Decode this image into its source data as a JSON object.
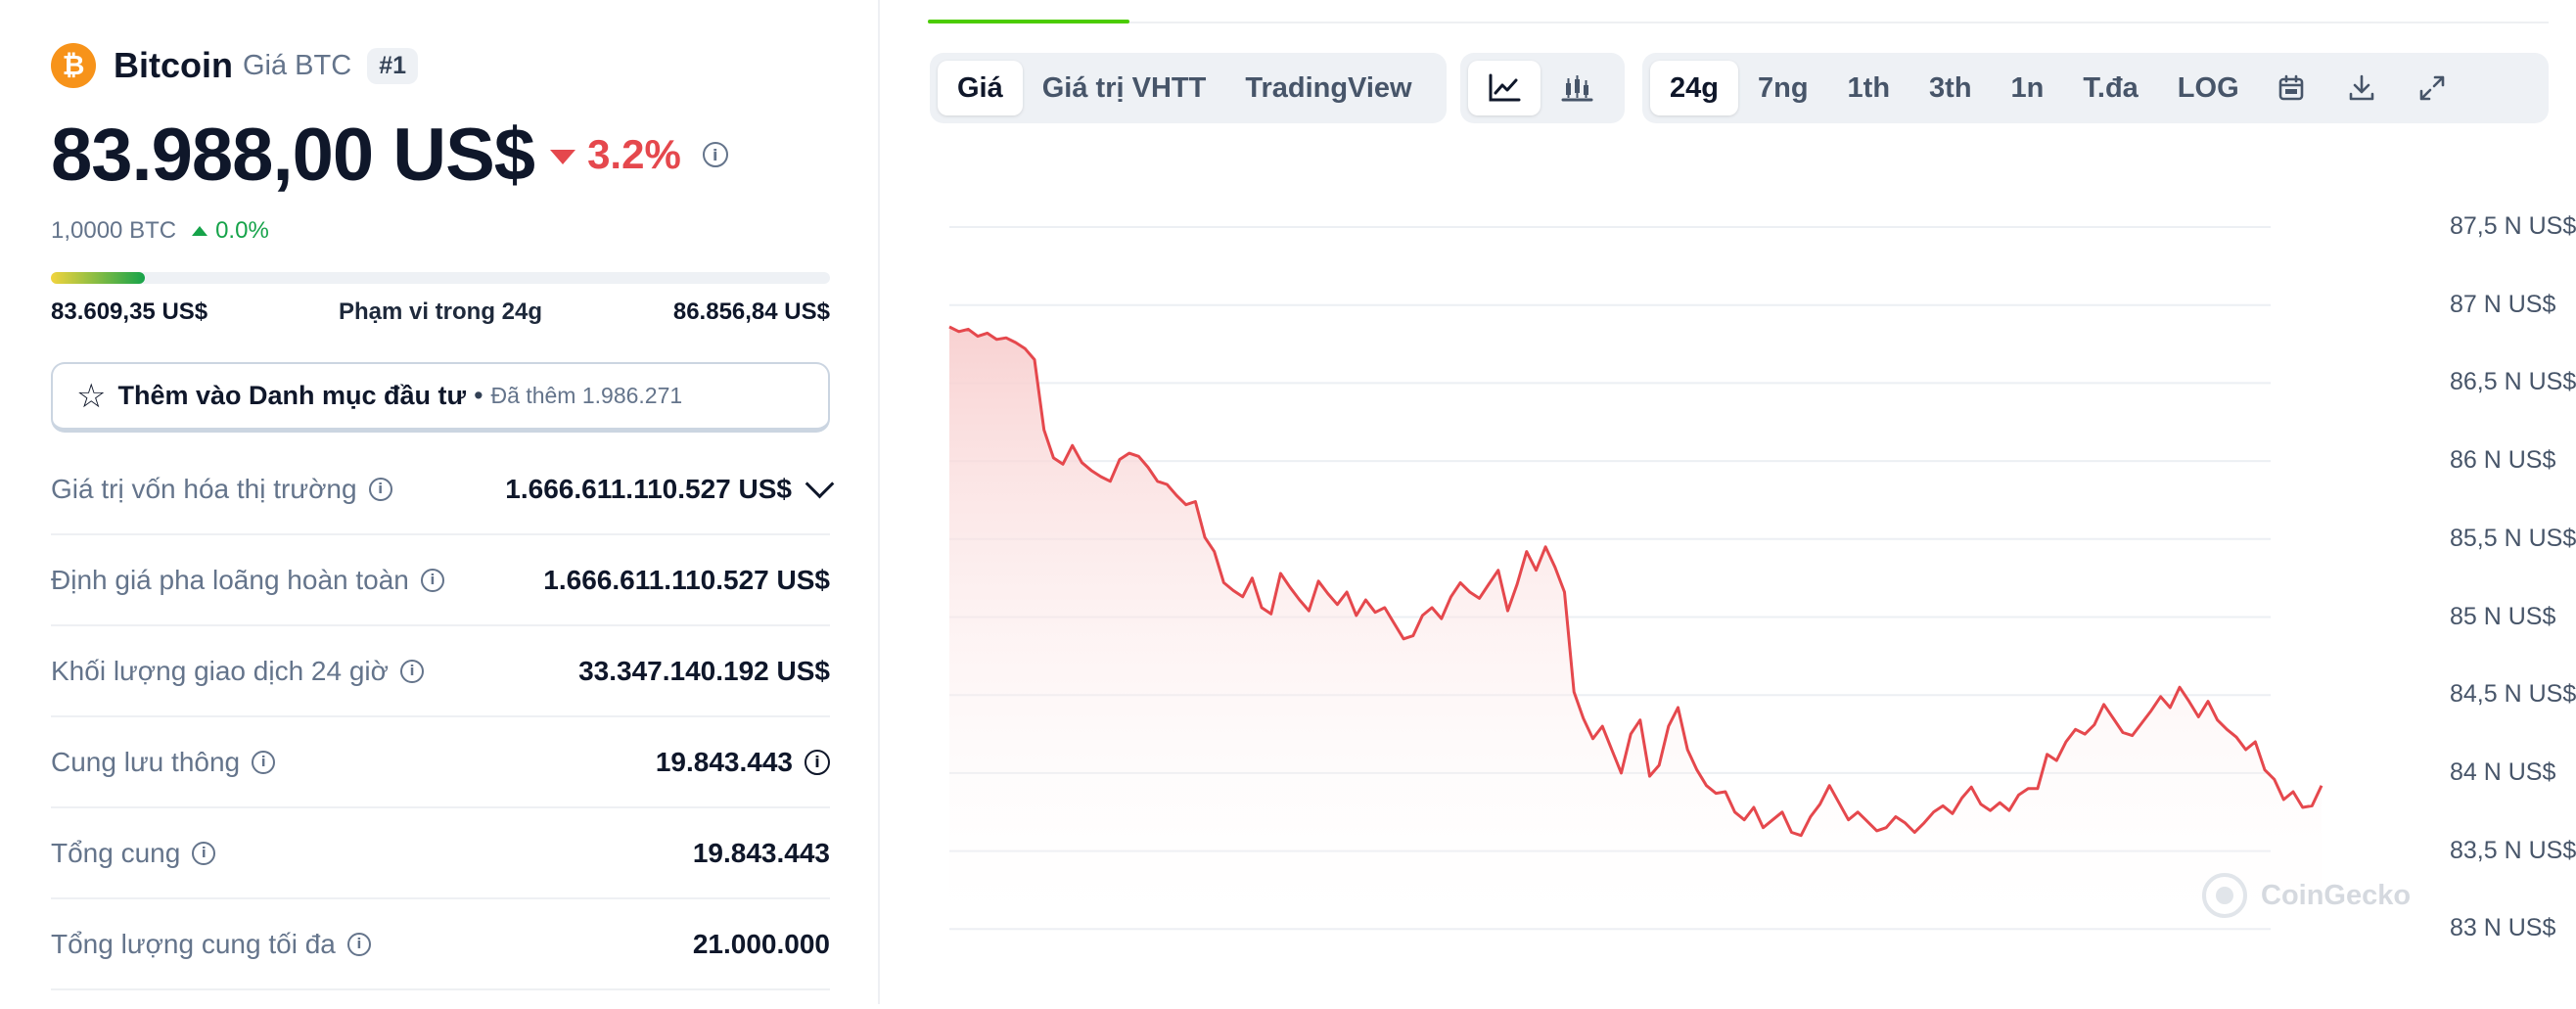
{
  "coin": {
    "logo_symbol": "₿",
    "name": "Bitcoin",
    "symbol_label": "Giá BTC",
    "rank": "#1"
  },
  "price": {
    "value": "83.988,00 US$",
    "change_pct": "3.2%",
    "change_direction": "down",
    "btc_value": "1,0000 BTC",
    "btc_change_pct": "0.0%",
    "btc_change_direction": "up"
  },
  "range_24h": {
    "low": "83.609,35 US$",
    "label": "Phạm vi trong 24g",
    "high": "86.856,84 US$",
    "position_fraction": 0.12
  },
  "watchlist": {
    "label": "Thêm vào Danh mục đầu tư",
    "separator": "•",
    "added_text": "Đã thêm 1.986.271"
  },
  "stats": [
    {
      "label": "Giá trị vốn hóa thị trường",
      "value": "1.666.611.110.527 US$",
      "has_info": true,
      "has_chevron": true
    },
    {
      "label": "Định giá pha loãng hoàn toàn",
      "value": "1.666.611.110.527 US$",
      "has_info": true
    },
    {
      "label": "Khối lượng giao dịch 24 giờ",
      "value": "33.347.140.192 US$",
      "has_info": true
    },
    {
      "label": "Cung lưu thông",
      "value": "19.843.443",
      "has_info": true,
      "value_info": true
    },
    {
      "label": "Tổng cung",
      "value": "19.843.443",
      "has_info": true
    },
    {
      "label": "Tổng lượng cung tối đa",
      "value": "21.000.000",
      "has_info": true
    }
  ],
  "chart_toolbar": {
    "data_tabs": [
      {
        "label": "Giá",
        "active": true
      },
      {
        "label": "Giá trị VHTT",
        "active": false
      },
      {
        "label": "TradingView",
        "active": false
      }
    ],
    "chart_types": [
      {
        "icon": "line-chart-icon",
        "active": true
      },
      {
        "icon": "candlestick-chart-icon",
        "active": false
      }
    ],
    "timeframes": [
      {
        "label": "24g",
        "active": true
      },
      {
        "label": "7ng",
        "active": false
      },
      {
        "label": "1th",
        "active": false
      },
      {
        "label": "3th",
        "active": false
      },
      {
        "label": "1n",
        "active": false
      },
      {
        "label": "T.đa",
        "active": false
      },
      {
        "label": "LOG",
        "active": false
      }
    ],
    "tools": [
      "calendar-icon",
      "download-icon",
      "expand-icon"
    ]
  },
  "watermark": "CoinGecko",
  "colors": {
    "line": "#e5484d",
    "fill": "#f8cfcf",
    "up": "#16a34a",
    "down": "#e5484d",
    "brand_active_tab": "#4bcc00",
    "bitcoin": "#f7931a"
  },
  "chart_data": {
    "type": "area",
    "title": "",
    "xlabel": "",
    "ylabel": "",
    "ylim": [
      83000,
      87750
    ],
    "y_tick_values": [
      87500,
      87000,
      86500,
      86000,
      85500,
      85000,
      84500,
      84000,
      83500,
      83000
    ],
    "y_tick_labels": [
      "87,5 N US$",
      "87 N US$",
      "86,5 N US$",
      "86 N US$",
      "85,5 N US$",
      "85 N US$",
      "84,5 N US$",
      "84 N US$",
      "83,5 N US$",
      "83 N US$"
    ],
    "grid": true,
    "series": [
      {
        "values": [
          86860,
          86830,
          86845,
          86800,
          86820,
          86780,
          86790,
          86760,
          86720,
          86650,
          86200,
          86020,
          85980,
          86100,
          85990,
          85940,
          85900,
          85870,
          86010,
          86050,
          86030,
          85960,
          85870,
          85850,
          85780,
          85720,
          85740,
          85510,
          85420,
          85220,
          85170,
          85130,
          85250,
          85060,
          85020,
          85280,
          85190,
          85110,
          85040,
          85230,
          85150,
          85080,
          85160,
          85010,
          85110,
          85030,
          85060,
          84960,
          84860,
          84880,
          85010,
          85060,
          84990,
          85130,
          85220,
          85160,
          85120,
          85210,
          85300,
          85040,
          85210,
          85420,
          85300,
          85450,
          85320,
          85160,
          84520,
          84350,
          84220,
          84300,
          84150,
          84000,
          84250,
          84340,
          83980,
          84050,
          84300,
          84420,
          84150,
          84020,
          83920,
          83870,
          83880,
          83750,
          83700,
          83780,
          83650,
          83700,
          83750,
          83620,
          83600,
          83720,
          83800,
          83920,
          83810,
          83700,
          83750,
          83690,
          83630,
          83650,
          83720,
          83680,
          83620,
          83680,
          83750,
          83790,
          83740,
          83840,
          83910,
          83800,
          83760,
          83810,
          83760,
          83860,
          83900,
          83900,
          84120,
          84080,
          84200,
          84280,
          84250,
          84310,
          84440,
          84350,
          84260,
          84240,
          84320,
          84400,
          84490,
          84420,
          84550,
          84460,
          84360,
          84460,
          84340,
          84280,
          84230,
          84150,
          84200,
          84020,
          83960,
          83830,
          83880,
          83780,
          83790,
          83920
        ]
      }
    ]
  }
}
